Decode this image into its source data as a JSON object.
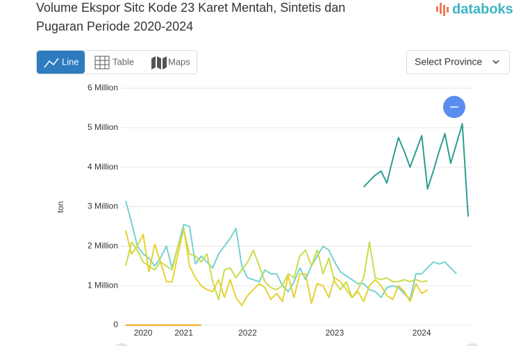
{
  "header": {
    "title": "Volume Ekspor Sitc Kode 23 Karet Mentah, Sintetis dan Pugaran Periode 2020-2024",
    "title_line1": "Volume Ekspor Sitc Kode 23 Karet Mentah, Sintetis dan",
    "title_line2": "Pugaran Periode 2020-2024",
    "logo": "databoks"
  },
  "tabs": [
    "Line",
    "Table",
    "Maps"
  ],
  "select": "Select Province",
  "chart_data": {
    "type": "line",
    "y_label": "ton",
    "categories": [
      null,
      null,
      null,
      "2020",
      null,
      null,
      null,
      null,
      null,
      null,
      "2021",
      null,
      null,
      null,
      null,
      null,
      null,
      null,
      null,
      null,
      null,
      "2022",
      null,
      null,
      null,
      null,
      null,
      null,
      null,
      null,
      null,
      null,
      null,
      null,
      null,
      null,
      "2023",
      null,
      null,
      null,
      null,
      null,
      null,
      null,
      null,
      null,
      null,
      null,
      null,
      null,
      null,
      "2024",
      null,
      null,
      null,
      null,
      null,
      null,
      null,
      null
    ],
    "ylim": [
      0,
      6000000
    ],
    "yticks": [
      0,
      {
        "value": 1000000,
        "label": "1 Million"
      },
      {
        "value": 2000000,
        "label": "2 Million"
      },
      {
        "value": 3000000,
        "label": "3 Million"
      },
      {
        "value": 4000000,
        "label": "4 Million"
      },
      {
        "value": 5000000,
        "label": "5 Million"
      },
      {
        "value": 6000000,
        "label": "6 Million"
      }
    ],
    "grid": true,
    "series": [
      {
        "color": "#2a9d8f",
        "values": [
          null,
          null,
          null,
          null,
          null,
          null,
          null,
          null,
          null,
          null,
          null,
          null,
          null,
          null,
          null,
          null,
          null,
          null,
          null,
          null,
          null,
          null,
          null,
          null,
          null,
          null,
          null,
          null,
          null,
          null,
          null,
          null,
          null,
          null,
          null,
          null,
          null,
          null,
          null,
          null,
          null,
          3500000,
          3650000,
          3800000,
          3900000,
          3600000,
          4200000,
          4750000,
          4400000,
          4000000,
          4400000,
          4800000,
          3450000,
          3900000,
          4400000,
          4850000,
          4100000,
          4600000,
          5100000,
          2750000
        ]
      },
      {
        "color": "#73d2cf",
        "values": [
          3150000,
          2600000,
          2000000,
          1800000,
          1700000,
          1500000,
          1700000,
          2000000,
          1450000,
          2000000,
          2550000,
          2500000,
          1550000,
          1750000,
          1600000,
          1450000,
          1800000,
          2000000,
          2200000,
          2450000,
          1500000,
          1200000,
          1150000,
          1100000,
          1400000,
          1300000,
          1300000,
          1000000,
          850000,
          1100000,
          1450000,
          1150000,
          1500000,
          1750000,
          2000000,
          1900000,
          1600000,
          1350000,
          1250000,
          1150000,
          1050000,
          1050000,
          900000,
          850000,
          700000,
          950000,
          1000000,
          950000,
          800000,
          650000,
          1300000,
          1300000,
          1450000,
          1600000,
          1550000,
          1600000,
          1450000,
          1300000,
          null,
          null
        ]
      },
      {
        "color": "#e6d12e",
        "values": [
          2400000,
          1800000,
          2000000,
          2300000,
          1350000,
          2050000,
          1600000,
          1100000,
          1100000,
          1800000,
          2450000,
          1500000,
          1200000,
          1000000,
          900000,
          850000,
          1150000,
          700000,
          1150000,
          700000,
          500000,
          750000,
          900000,
          1050000,
          950000,
          650000,
          800000,
          600000,
          1250000,
          700000,
          1300000,
          1300000,
          550000,
          1050000,
          1000000,
          700000,
          1200000,
          1100000,
          900000,
          700000,
          850000,
          600000,
          1000000,
          1150000,
          1000000,
          750000,
          650000,
          1000000,
          850000,
          600000,
          1050000,
          800000,
          900000,
          null,
          null,
          null,
          null,
          null,
          null,
          null
        ]
      },
      {
        "color": "#c9dc4a",
        "values": [
          1500000,
          2100000,
          1900000,
          1600000,
          1500000,
          1400000,
          1600000,
          1500000,
          1400000,
          2000000,
          2400000,
          1800000,
          1750000,
          1600000,
          1800000,
          1100000,
          650000,
          1400000,
          1450000,
          1200000,
          1400000,
          1600000,
          1900000,
          1500000,
          1100000,
          950000,
          900000,
          1000000,
          1300000,
          1200000,
          1750000,
          1900000,
          1500000,
          1900000,
          1300000,
          1700000,
          1100000,
          900000,
          1100000,
          700000,
          900000,
          1200000,
          2100000,
          1200000,
          1150000,
          1200000,
          1100000,
          1100000,
          1150000,
          1100000,
          1150000,
          1100000,
          1120000,
          null,
          null,
          null,
          null,
          null,
          null,
          null
        ]
      },
      {
        "color": "#f5a623",
        "values": [
          0,
          0,
          0,
          0,
          0,
          0,
          0,
          0,
          0,
          0,
          0,
          0,
          0,
          0,
          null,
          null,
          null,
          null,
          null,
          null,
          null,
          null,
          null,
          null,
          null,
          null,
          null,
          null,
          null,
          null,
          null,
          null,
          null,
          null,
          null,
          null,
          null,
          null,
          null,
          null,
          null,
          null,
          null,
          null,
          null,
          null,
          null,
          null,
          null,
          null,
          null,
          null,
          null,
          null,
          null,
          null,
          null,
          null,
          null,
          null
        ]
      }
    ]
  }
}
